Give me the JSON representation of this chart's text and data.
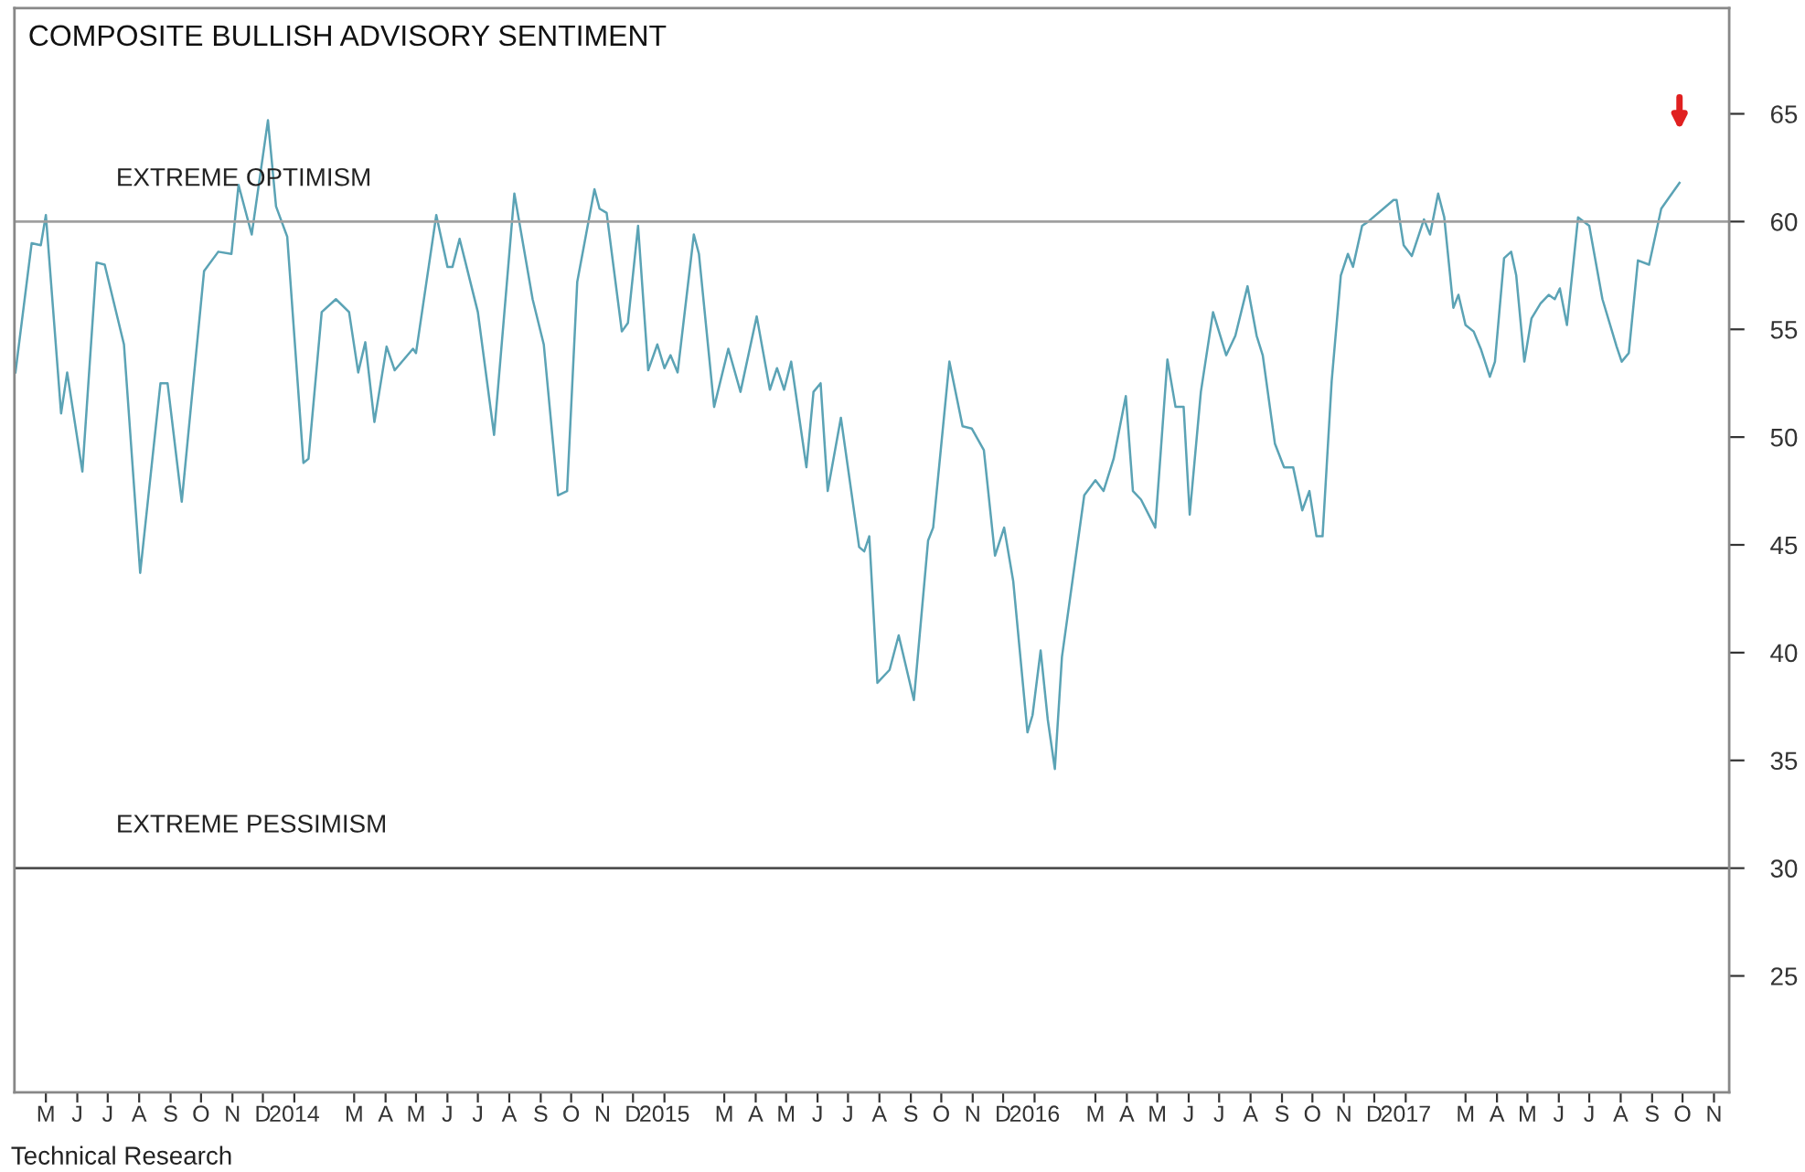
{
  "chart_data": {
    "type": "line",
    "title": "COMPOSITE BULLISH ADVISORY SENTIMENT",
    "xlim": [
      "2013-04-14",
      "2017-11-30"
    ],
    "ylim": [
      19.6,
      69.9
    ],
    "yticks": [
      65,
      60,
      55,
      50,
      45,
      40,
      35,
      30,
      25
    ],
    "xticks": [
      {
        "value": "2013-05-15",
        "label": "M"
      },
      {
        "value": "2013-06-15",
        "label": "J"
      },
      {
        "value": "2013-07-15",
        "label": "J"
      },
      {
        "value": "2013-08-15",
        "label": "A"
      },
      {
        "value": "2013-09-15",
        "label": "S"
      },
      {
        "value": "2013-10-15",
        "label": "O"
      },
      {
        "value": "2013-11-15",
        "label": "N"
      },
      {
        "value": "2013-12-15",
        "label": "D"
      },
      {
        "value": "2014-01-15",
        "label": "2014"
      },
      {
        "value": "2014-03-15",
        "label": "M"
      },
      {
        "value": "2014-04-15",
        "label": "A"
      },
      {
        "value": "2014-05-15",
        "label": "M"
      },
      {
        "value": "2014-06-15",
        "label": "J"
      },
      {
        "value": "2014-07-15",
        "label": "J"
      },
      {
        "value": "2014-08-15",
        "label": "A"
      },
      {
        "value": "2014-09-15",
        "label": "S"
      },
      {
        "value": "2014-10-15",
        "label": "O"
      },
      {
        "value": "2014-11-15",
        "label": "N"
      },
      {
        "value": "2014-12-15",
        "label": "D"
      },
      {
        "value": "2015-01-15",
        "label": "2015"
      },
      {
        "value": "2015-03-15",
        "label": "M"
      },
      {
        "value": "2015-04-15",
        "label": "A"
      },
      {
        "value": "2015-05-15",
        "label": "M"
      },
      {
        "value": "2015-06-15",
        "label": "J"
      },
      {
        "value": "2015-07-15",
        "label": "J"
      },
      {
        "value": "2015-08-15",
        "label": "A"
      },
      {
        "value": "2015-09-15",
        "label": "S"
      },
      {
        "value": "2015-10-15",
        "label": "O"
      },
      {
        "value": "2015-11-15",
        "label": "N"
      },
      {
        "value": "2015-12-15",
        "label": "D"
      },
      {
        "value": "2016-01-15",
        "label": "2016"
      },
      {
        "value": "2016-03-15",
        "label": "M"
      },
      {
        "value": "2016-04-15",
        "label": "A"
      },
      {
        "value": "2016-05-15",
        "label": "M"
      },
      {
        "value": "2016-06-15",
        "label": "J"
      },
      {
        "value": "2016-07-15",
        "label": "J"
      },
      {
        "value": "2016-08-15",
        "label": "A"
      },
      {
        "value": "2016-09-15",
        "label": "S"
      },
      {
        "value": "2016-10-15",
        "label": "O"
      },
      {
        "value": "2016-11-15",
        "label": "N"
      },
      {
        "value": "2016-12-15",
        "label": "D"
      },
      {
        "value": "2017-01-15",
        "label": "2017"
      },
      {
        "value": "2017-03-15",
        "label": "M"
      },
      {
        "value": "2017-04-15",
        "label": "A"
      },
      {
        "value": "2017-05-15",
        "label": "M"
      },
      {
        "value": "2017-06-15",
        "label": "J"
      },
      {
        "value": "2017-07-15",
        "label": "J"
      },
      {
        "value": "2017-08-15",
        "label": "A"
      },
      {
        "value": "2017-09-15",
        "label": "S"
      },
      {
        "value": "2017-10-15",
        "label": "O"
      },
      {
        "value": "2017-11-15",
        "label": "N"
      }
    ],
    "ref_lines": [
      {
        "axis": "y",
        "value": 60,
        "label": "EXTREME OPTIMISM",
        "color": "#a0a0a0"
      },
      {
        "axis": "y",
        "value": 30,
        "label": "EXTREME PESSIMISM",
        "color": "#505050"
      }
    ],
    "annotations": [
      "Technical Research"
    ],
    "grid": false,
    "legend": false,
    "marker": "none",
    "line_style": "solid",
    "series": [
      {
        "color": "#5ba3b5",
        "x": [
          "2013-04-15",
          "2013-05-01",
          "2013-05-10",
          "2013-05-15",
          "2013-05-30",
          "2013-06-05",
          "2013-06-20",
          "2013-07-04",
          "2013-07-12",
          "2013-07-31",
          "2013-08-16",
          "2013-09-05",
          "2013-09-12",
          "2013-09-26",
          "2013-10-18",
          "2013-11-01",
          "2013-11-14",
          "2013-11-21",
          "2013-12-04",
          "2013-12-20",
          "2013-12-28",
          "2014-01-08",
          "2014-01-24",
          "2014-01-29",
          "2014-02-11",
          "2014-02-25",
          "2014-03-10",
          "2014-03-19",
          "2014-03-26",
          "2014-04-04",
          "2014-04-16",
          "2014-04-24",
          "2014-05-12",
          "2014-05-15",
          "2014-06-04",
          "2014-06-15",
          "2014-06-20",
          "2014-06-27",
          "2014-07-15",
          "2014-07-31",
          "2014-08-20",
          "2014-09-07",
          "2014-09-18",
          "2014-10-02",
          "2014-10-11",
          "2014-10-21",
          "2014-11-07",
          "2014-11-12",
          "2014-11-19",
          "2014-12-04",
          "2014-12-10",
          "2014-12-20",
          "2014-12-30",
          "2015-01-08",
          "2015-01-15",
          "2015-01-21",
          "2015-01-28",
          "2015-02-13",
          "2015-02-18",
          "2015-03-05",
          "2015-03-19",
          "2015-03-31",
          "2015-04-16",
          "2015-04-29",
          "2015-05-06",
          "2015-05-13",
          "2015-05-20",
          "2015-06-04",
          "2015-06-11",
          "2015-06-18",
          "2015-06-25",
          "2015-07-08",
          "2015-07-26",
          "2015-07-31",
          "2015-08-05",
          "2015-08-13",
          "2015-08-25",
          "2015-09-03",
          "2015-09-18",
          "2015-10-02",
          "2015-10-07",
          "2015-10-23",
          "2015-11-05",
          "2015-11-14",
          "2015-11-26",
          "2015-12-07",
          "2015-12-16",
          "2015-12-25",
          "2016-01-08",
          "2016-01-13",
          "2016-01-21",
          "2016-01-28",
          "2016-02-04",
          "2016-02-11",
          "2016-03-04",
          "2016-03-15",
          "2016-03-23",
          "2016-04-02",
          "2016-04-14",
          "2016-04-21",
          "2016-04-29",
          "2016-05-13",
          "2016-05-25",
          "2016-06-02",
          "2016-06-10",
          "2016-06-16",
          "2016-06-27",
          "2016-07-09",
          "2016-07-22",
          "2016-07-31",
          "2016-08-12",
          "2016-08-21",
          "2016-08-27",
          "2016-09-08",
          "2016-09-17",
          "2016-09-26",
          "2016-10-05",
          "2016-10-12",
          "2016-10-19",
          "2016-10-25",
          "2016-11-03",
          "2016-11-12",
          "2016-11-19",
          "2016-11-24",
          "2016-12-03",
          "2016-12-09",
          "2017-01-03",
          "2017-01-06",
          "2017-01-13",
          "2017-01-21",
          "2017-02-02",
          "2017-02-08",
          "2017-02-16",
          "2017-02-22",
          "2017-03-03",
          "2017-03-08",
          "2017-03-15",
          "2017-03-23",
          "2017-03-30",
          "2017-04-08",
          "2017-04-13",
          "2017-04-22",
          "2017-04-29",
          "2017-05-04",
          "2017-05-12",
          "2017-05-19",
          "2017-05-28",
          "2017-06-05",
          "2017-06-11",
          "2017-06-16",
          "2017-06-23",
          "2017-07-04",
          "2017-07-15",
          "2017-07-28",
          "2017-08-11",
          "2017-08-16",
          "2017-08-23",
          "2017-09-01",
          "2017-09-12",
          "2017-09-24",
          "2017-09-30",
          "2017-10-12"
        ],
        "values": [
          53.0,
          59.0,
          58.9,
          60.3,
          51.1,
          53.0,
          48.4,
          58.1,
          58.0,
          54.3,
          43.7,
          52.5,
          52.5,
          47.0,
          57.7,
          58.6,
          58.5,
          61.7,
          59.4,
          64.7,
          60.7,
          59.3,
          48.8,
          49.0,
          55.8,
          56.4,
          55.8,
          53.0,
          54.4,
          50.7,
          54.2,
          53.1,
          54.1,
          53.9,
          60.3,
          57.9,
          57.9,
          59.2,
          55.8,
          50.1,
          61.3,
          56.4,
          54.3,
          47.3,
          47.5,
          57.2,
          61.5,
          60.6,
          60.4,
          54.9,
          55.3,
          59.8,
          53.1,
          54.3,
          53.2,
          53.8,
          53.0,
          59.4,
          58.5,
          51.4,
          54.1,
          52.1,
          55.6,
          52.2,
          53.2,
          52.2,
          53.5,
          48.6,
          52.1,
          52.5,
          47.5,
          50.9,
          44.9,
          44.7,
          45.4,
          38.6,
          39.2,
          40.8,
          37.8,
          45.2,
          45.8,
          53.5,
          50.5,
          50.4,
          49.4,
          44.5,
          45.8,
          43.3,
          36.3,
          37.1,
          40.1,
          36.9,
          34.6,
          39.8,
          47.3,
          48.0,
          47.5,
          49.0,
          51.9,
          47.5,
          47.1,
          45.8,
          53.6,
          51.4,
          51.4,
          46.4,
          52.1,
          55.8,
          53.8,
          54.7,
          57.0,
          54.7,
          53.8,
          49.7,
          48.6,
          48.6,
          46.6,
          47.5,
          45.4,
          45.4,
          52.6,
          57.5,
          58.5,
          57.9,
          59.8,
          60.0,
          61.0,
          61.0,
          58.9,
          58.4,
          60.1,
          59.4,
          61.3,
          60.2,
          56.0,
          56.6,
          55.2,
          54.9,
          54.1,
          52.8,
          53.5,
          58.3,
          58.6,
          57.5,
          53.5,
          55.5,
          56.2,
          56.6,
          56.4,
          56.9,
          55.2,
          60.2,
          59.8,
          56.4,
          54.2,
          53.5,
          53.9,
          58.2,
          58.0,
          60.6,
          61.0,
          61.8
        ]
      }
    ]
  }
}
